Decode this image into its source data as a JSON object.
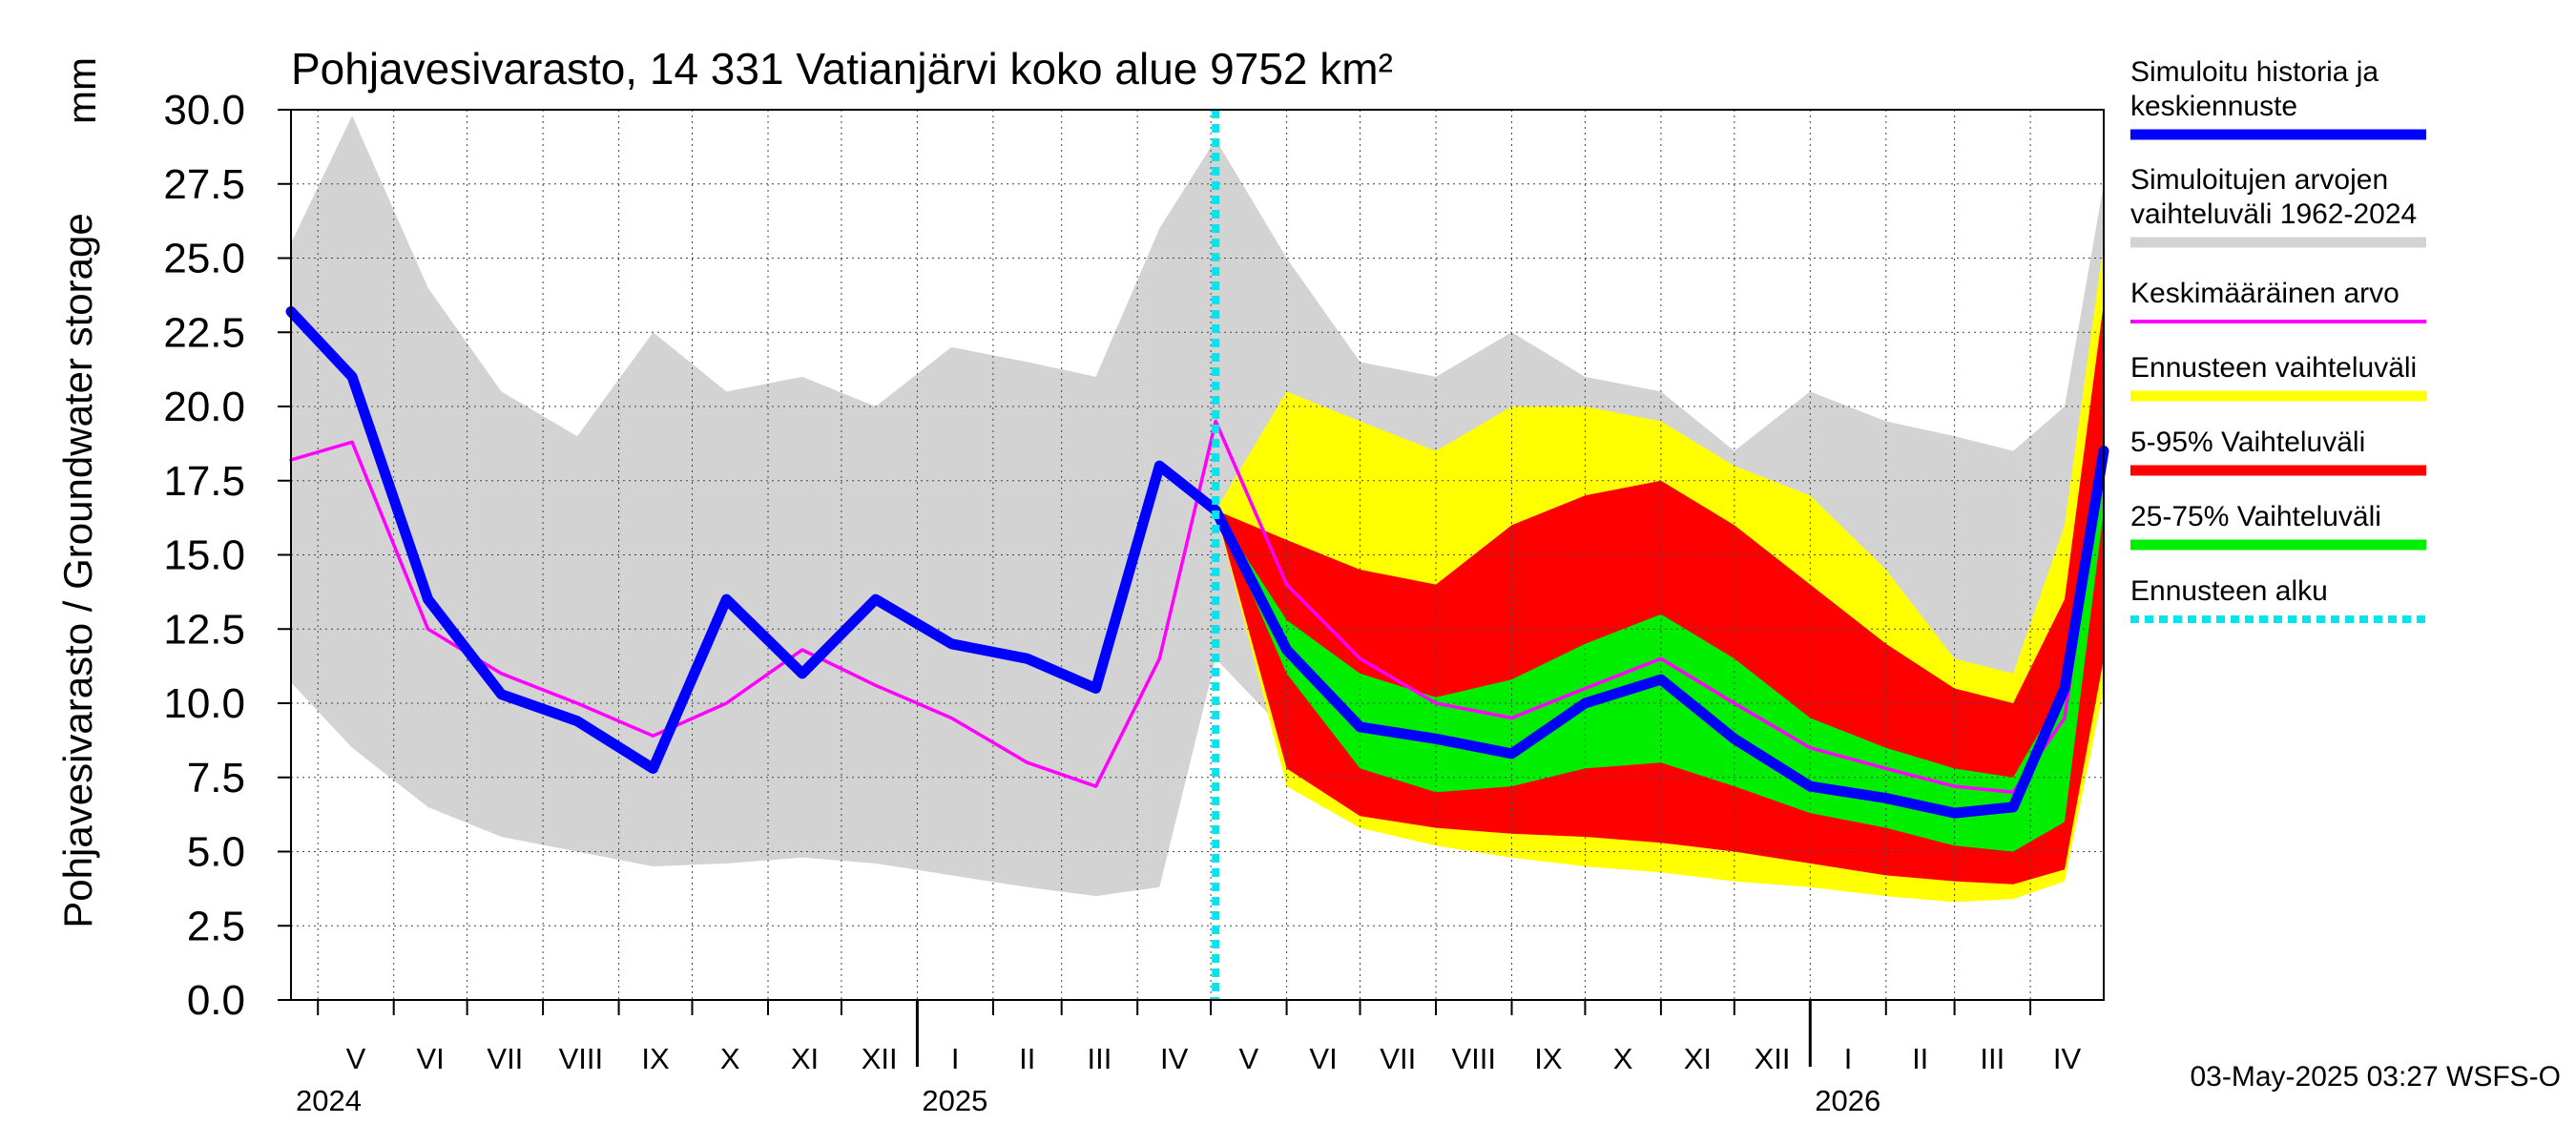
{
  "chart_data": {
    "type": "area",
    "title": "Pohjavesivarasto, 14 331 Vatianjärvi koko alue 9752 km²",
    "ylabel": "Pohjavesivarasto / Groundwater storage",
    "yunit": "mm",
    "ylim": [
      0,
      30
    ],
    "yticks": [
      "0.0",
      "2.5",
      "5.0",
      "7.5",
      "10.0",
      "12.5",
      "15.0",
      "17.5",
      "20.0",
      "22.5",
      "25.0",
      "27.5",
      "30.0"
    ],
    "xlim": [
      "2024-04-20",
      "2026-05-01"
    ],
    "forecast_start": "2025-05-03",
    "months": [
      {
        "label": "V",
        "start": "2024-05-01"
      },
      {
        "label": "VI",
        "start": "2024-06-01"
      },
      {
        "label": "VII",
        "start": "2024-07-01"
      },
      {
        "label": "VIII",
        "start": "2024-08-01"
      },
      {
        "label": "IX",
        "start": "2024-09-01"
      },
      {
        "label": "X",
        "start": "2024-10-01"
      },
      {
        "label": "XI",
        "start": "2024-11-01"
      },
      {
        "label": "XII",
        "start": "2024-12-01"
      },
      {
        "label": "I",
        "start": "2025-01-01"
      },
      {
        "label": "II",
        "start": "2025-02-01"
      },
      {
        "label": "III",
        "start": "2025-03-01"
      },
      {
        "label": "IV",
        "start": "2025-04-01"
      },
      {
        "label": "V",
        "start": "2025-05-01"
      },
      {
        "label": "VI",
        "start": "2025-06-01"
      },
      {
        "label": "VII",
        "start": "2025-07-01"
      },
      {
        "label": "VIII",
        "start": "2025-08-01"
      },
      {
        "label": "IX",
        "start": "2025-09-01"
      },
      {
        "label": "X",
        "start": "2025-10-01"
      },
      {
        "label": "XI",
        "start": "2025-11-01"
      },
      {
        "label": "XII",
        "start": "2025-12-01"
      },
      {
        "label": "I",
        "start": "2026-01-01"
      },
      {
        "label": "II",
        "start": "2026-02-01"
      },
      {
        "label": "III",
        "start": "2026-03-01"
      },
      {
        "label": "IV",
        "start": "2026-04-01"
      }
    ],
    "years": [
      {
        "label": "2024",
        "at": "2024-04-20"
      },
      {
        "label": "2025",
        "at": "2025-01-01"
      },
      {
        "label": "2026",
        "at": "2026-01-01"
      }
    ],
    "x": [
      "2024-04-20",
      "2024-05-15",
      "2024-06-15",
      "2024-07-15",
      "2024-08-15",
      "2024-09-15",
      "2024-10-15",
      "2024-11-15",
      "2024-12-15",
      "2025-01-15",
      "2025-02-15",
      "2025-03-15",
      "2025-04-10",
      "2025-05-03",
      "2025-06-01",
      "2025-07-01",
      "2025-08-01",
      "2025-09-01",
      "2025-10-01",
      "2025-11-01",
      "2025-12-01",
      "2026-01-01",
      "2026-02-01",
      "2026-03-01",
      "2026-03-25",
      "2026-04-15",
      "2026-05-01"
    ],
    "series": [
      {
        "name": "Simuloitujen arvojen vaihteluväli 1962-2024",
        "role": "range",
        "color": "#d3d3d3",
        "low": [
          10.7,
          8.5,
          6.5,
          5.5,
          5.0,
          4.5,
          4.6,
          4.8,
          4.6,
          4.2,
          3.8,
          3.5,
          3.8,
          11.5,
          9.0,
          6.5,
          5.5,
          5.0,
          5.0,
          4.8,
          4.5,
          4.1,
          3.8,
          3.5,
          3.4,
          4.5,
          11.0
        ],
        "high": [
          25.5,
          29.8,
          24.0,
          20.5,
          19.0,
          22.5,
          20.5,
          21.0,
          20.0,
          22.0,
          21.5,
          21.0,
          26.0,
          29.0,
          25.0,
          21.5,
          21.0,
          22.5,
          21.0,
          20.5,
          18.5,
          20.5,
          19.5,
          19.0,
          18.5,
          20.0,
          27.5
        ]
      },
      {
        "name": "Ennusteen vaihteluväli",
        "role": "range",
        "color": "#ffff00",
        "low": [
          null,
          null,
          null,
          null,
          null,
          null,
          null,
          null,
          null,
          null,
          null,
          null,
          null,
          16.5,
          7.2,
          5.8,
          5.2,
          4.8,
          4.5,
          4.3,
          4.0,
          3.8,
          3.5,
          3.3,
          3.4,
          4.0,
          10.5
        ],
        "high": [
          null,
          null,
          null,
          null,
          null,
          null,
          null,
          null,
          null,
          null,
          null,
          null,
          null,
          16.5,
          20.5,
          19.5,
          18.5,
          20.0,
          20.0,
          19.5,
          18.0,
          17.0,
          14.5,
          11.5,
          11.0,
          16.0,
          25.5
        ]
      },
      {
        "name": "5-95% Vaihteluväli",
        "role": "range",
        "color": "#ff0000",
        "low": [
          null,
          null,
          null,
          null,
          null,
          null,
          null,
          null,
          null,
          null,
          null,
          null,
          null,
          16.5,
          7.8,
          6.2,
          5.8,
          5.6,
          5.5,
          5.3,
          5.0,
          4.6,
          4.2,
          4.0,
          3.9,
          4.4,
          11.5
        ],
        "high": [
          null,
          null,
          null,
          null,
          null,
          null,
          null,
          null,
          null,
          null,
          null,
          null,
          null,
          16.5,
          15.5,
          14.5,
          14.0,
          16.0,
          17.0,
          17.5,
          16.0,
          14.0,
          12.0,
          10.5,
          10.0,
          13.5,
          23.5
        ]
      },
      {
        "name": "25-75% Vaihteluväli",
        "role": "range",
        "color": "#00ee00",
        "low": [
          null,
          null,
          null,
          null,
          null,
          null,
          null,
          null,
          null,
          null,
          null,
          null,
          null,
          16.5,
          11.0,
          7.8,
          7.0,
          7.2,
          7.8,
          8.0,
          7.2,
          6.3,
          5.8,
          5.2,
          5.0,
          6.0,
          16.5
        ],
        "high": [
          null,
          null,
          null,
          null,
          null,
          null,
          null,
          null,
          null,
          null,
          null,
          null,
          null,
          16.5,
          12.8,
          11.0,
          10.2,
          10.8,
          12.0,
          13.0,
          11.5,
          9.5,
          8.5,
          7.8,
          7.5,
          10.5,
          18.5
        ]
      },
      {
        "name": "Keskimääräinen arvo",
        "role": "line",
        "color": "#ff00ff",
        "values": [
          18.2,
          18.8,
          12.5,
          11.0,
          10.0,
          8.9,
          10.0,
          11.8,
          10.6,
          9.5,
          8.0,
          7.2,
          11.5,
          19.5,
          14.0,
          11.5,
          10.0,
          9.5,
          10.5,
          11.5,
          10.0,
          8.5,
          7.8,
          7.2,
          7.0,
          9.5,
          18.5
        ]
      },
      {
        "name": "Simuloitu historia ja keskiennuste",
        "role": "line",
        "color": "#0000ff",
        "values": [
          23.2,
          21.0,
          13.5,
          10.3,
          9.4,
          7.8,
          13.5,
          11.0,
          13.5,
          12.0,
          11.5,
          10.5,
          18.0,
          16.5,
          11.8,
          9.2,
          8.8,
          8.3,
          10.0,
          10.8,
          8.8,
          7.2,
          6.8,
          6.3,
          6.5,
          10.5,
          18.5
        ]
      },
      {
        "name": "Ennusteen alku",
        "role": "vline",
        "color": "#00e5ee"
      }
    ],
    "legend": [
      {
        "label": "Simuloitu historia ja keskiennuste",
        "color": "#0000ff",
        "style": "thick"
      },
      {
        "label": "Simuloitujen arvojen vaihteluväli 1962-2024",
        "color": "#d3d3d3",
        "style": "thick"
      },
      {
        "label": "Keskimääräinen arvo",
        "color": "#ff00ff",
        "style": "thin"
      },
      {
        "label": "Ennusteen vaihteluväli",
        "color": "#ffff00",
        "style": "thick"
      },
      {
        "label": "5-95% Vaihteluväli",
        "color": "#ff0000",
        "style": "thick"
      },
      {
        "label": "25-75% Vaihteluväli",
        "color": "#00ee00",
        "style": "thick"
      },
      {
        "label": "Ennusteen alku",
        "color": "#00e5ee",
        "style": "dotted"
      }
    ],
    "legend_position": "right",
    "grid": true
  },
  "footer": "03-May-2025 03:27 WSFS-O"
}
